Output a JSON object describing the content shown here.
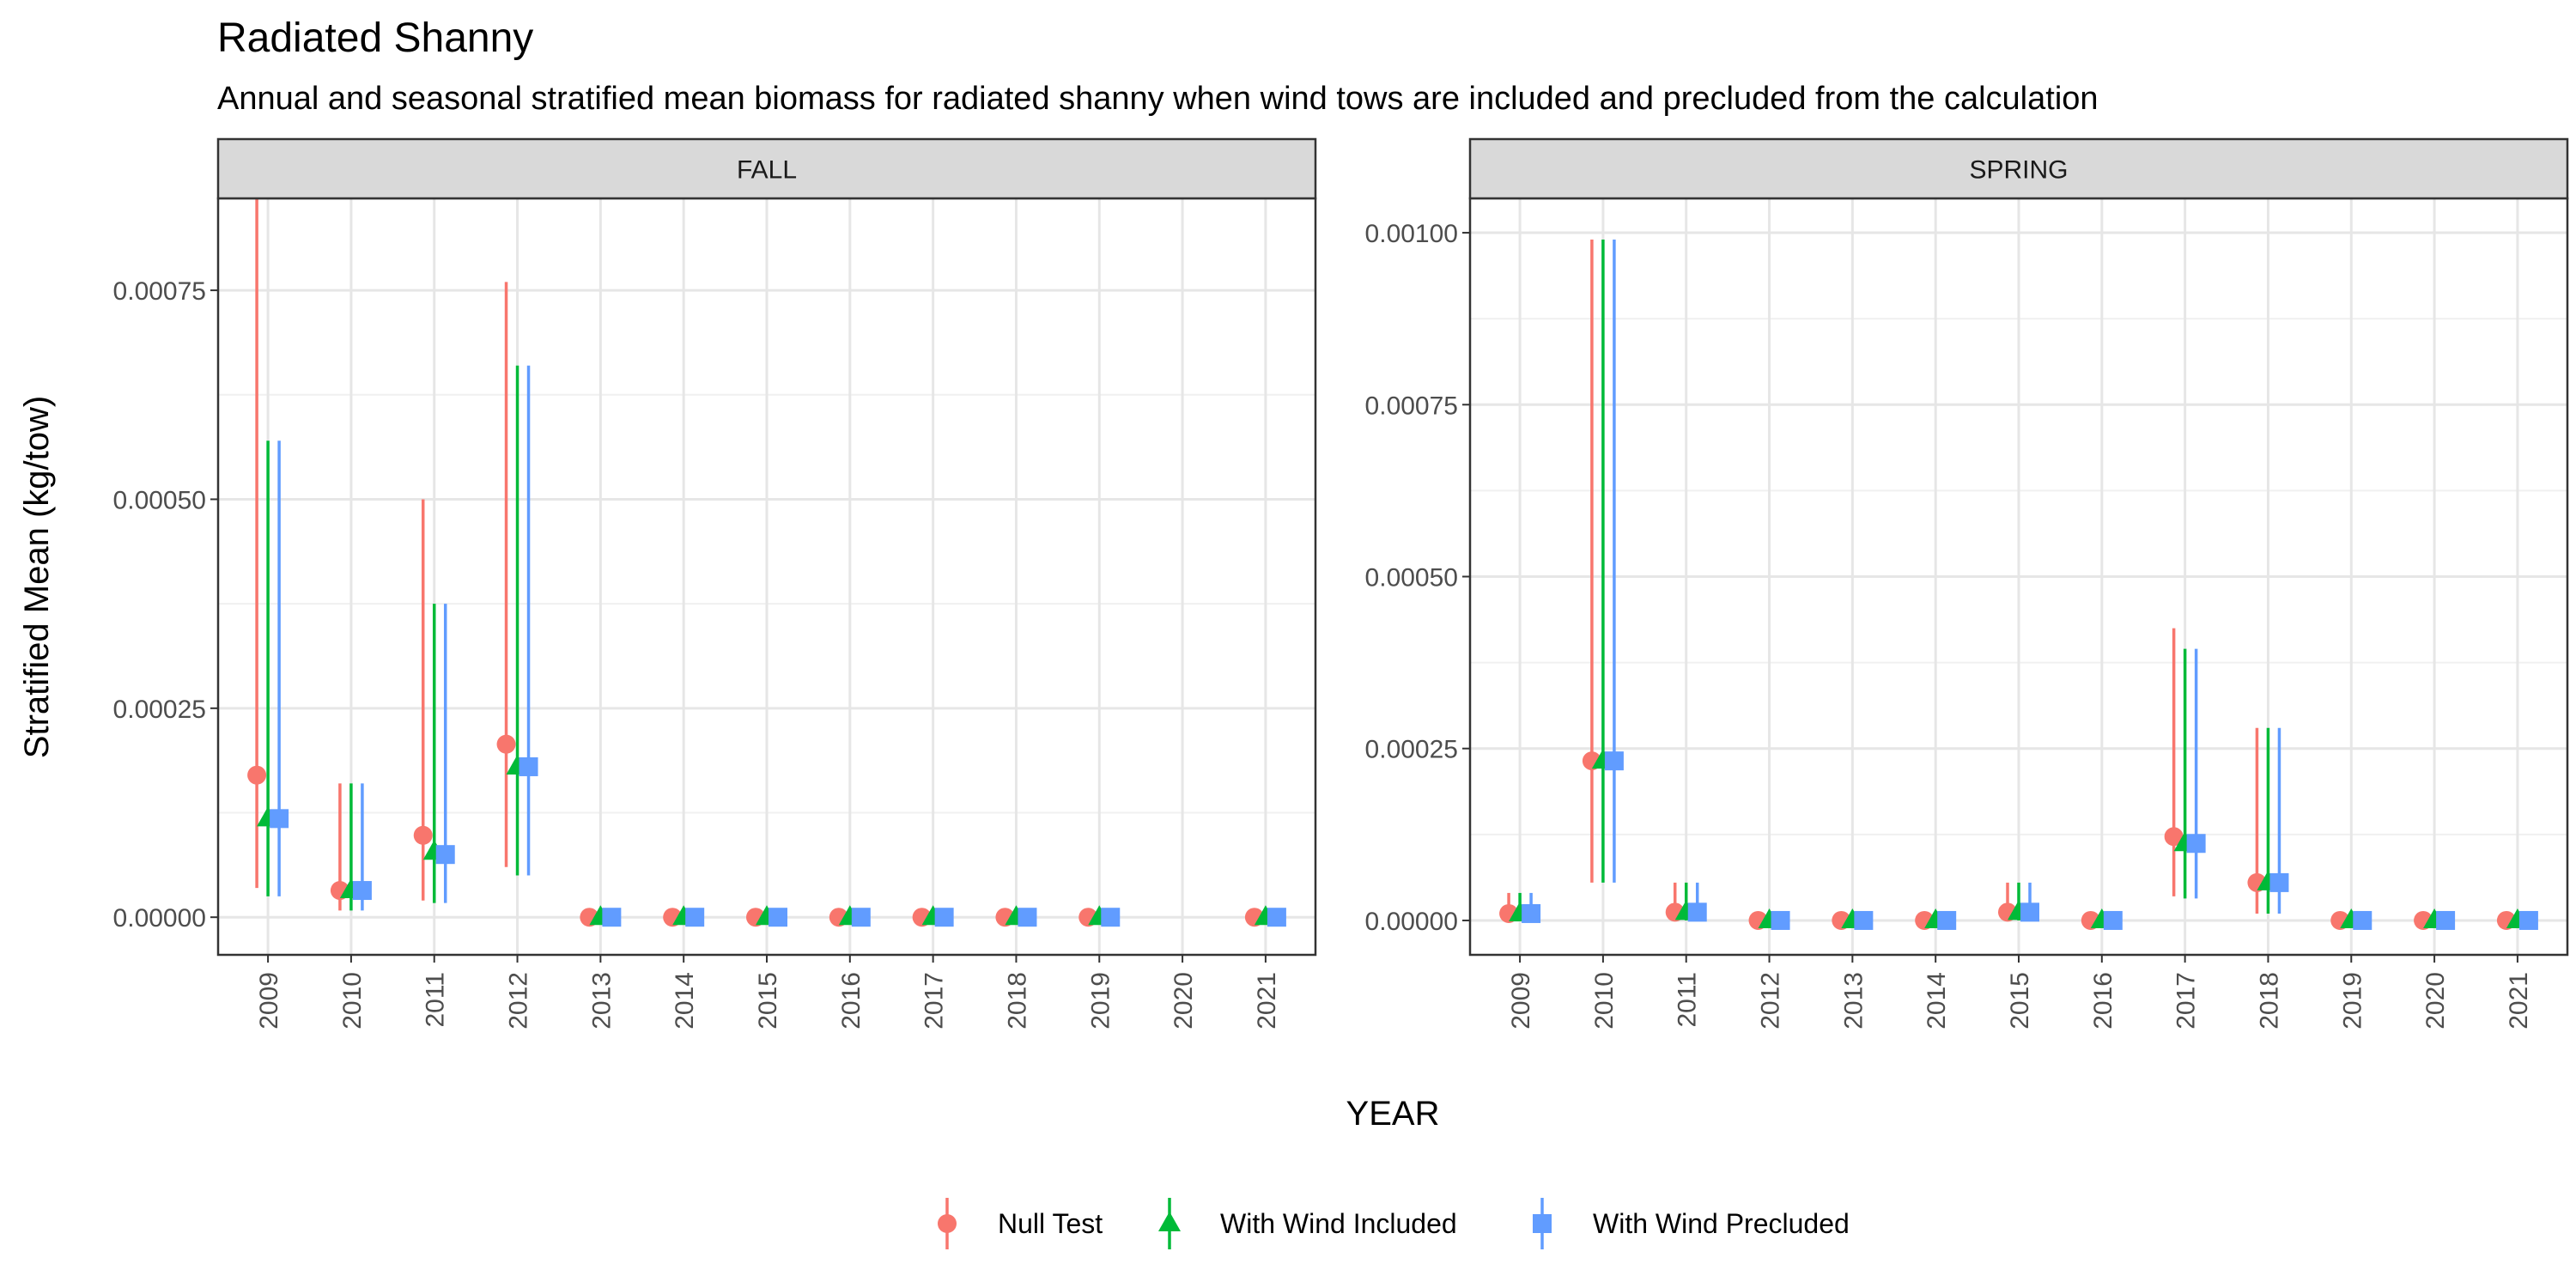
{
  "title": "Radiated Shanny",
  "subtitle": "Annual and seasonal stratified mean biomass for radiated shanny when wind tows are included and precluded from the calculation",
  "chart_data": {
    "type": "scatter",
    "xlabel": "YEAR",
    "ylabel": "Stratified Mean (kg/tow)",
    "facets": [
      {
        "name": "FALL",
        "categories": [
          "2009",
          "2010",
          "2011",
          "2012",
          "2013",
          "2014",
          "2015",
          "2016",
          "2017",
          "2018",
          "2019",
          "2020",
          "2021"
        ],
        "ylim": [
          -4.5e-05,
          0.00086
        ],
        "yticks": [
          0,
          0.00025,
          0.0005,
          0.00075
        ],
        "ytick_labels": [
          "0.00000",
          "0.00025",
          "0.00050",
          "0.00075"
        ],
        "series": [
          {
            "name": "Null Test",
            "values": [
              0.00017,
              3.2e-05,
              9.8e-05,
              0.000207,
              0,
              0,
              0,
              0,
              0,
              0,
              0,
              null,
              0
            ],
            "lower": [
              3.5e-05,
              8e-06,
              2e-05,
              6e-05,
              0,
              0,
              0,
              0,
              0,
              0,
              0,
              null,
              0
            ],
            "upper": [
              0.00086,
              0.00016,
              0.0005,
              0.00076,
              0,
              0,
              0,
              0,
              0,
              0,
              0,
              null,
              0
            ]
          },
          {
            "name": "With Wind Included",
            "values": [
              0.000118,
              3.2e-05,
              7.8e-05,
              0.00018,
              0,
              0,
              0,
              0,
              0,
              0,
              0,
              null,
              0
            ],
            "lower": [
              2.5e-05,
              8e-06,
              1.7e-05,
              5e-05,
              0,
              0,
              0,
              0,
              0,
              0,
              0,
              null,
              0
            ],
            "upper": [
              0.00057,
              0.00016,
              0.000375,
              0.00066,
              0,
              0,
              0,
              0,
              0,
              0,
              0,
              null,
              0
            ]
          },
          {
            "name": "With Wind Precluded",
            "values": [
              0.000118,
              3.2e-05,
              7.5e-05,
              0.00018,
              0,
              0,
              0,
              0,
              0,
              0,
              0,
              null,
              0
            ],
            "lower": [
              2.5e-05,
              8e-06,
              1.7e-05,
              5e-05,
              0,
              0,
              0,
              0,
              0,
              0,
              0,
              null,
              0
            ],
            "upper": [
              0.00057,
              0.00016,
              0.000375,
              0.00066,
              0,
              0,
              0,
              0,
              0,
              0,
              0,
              null,
              0
            ]
          }
        ]
      },
      {
        "name": "SPRING",
        "categories": [
          "2009",
          "2010",
          "2011",
          "2012",
          "2013",
          "2014",
          "2015",
          "2016",
          "2017",
          "2018",
          "2019",
          "2020",
          "2021"
        ],
        "ylim": [
          -5e-05,
          0.00105
        ],
        "yticks": [
          0,
          0.00025,
          0.0005,
          0.00075,
          0.001
        ],
        "ytick_labels": [
          "0.00000",
          "0.00025",
          "0.00050",
          "0.00075",
          "0.00100"
        ],
        "series": [
          {
            "name": "Null Test",
            "values": [
              1e-05,
              0.000232,
              1.2e-05,
              0,
              0,
              0,
              1.2e-05,
              0,
              0.000122,
              5.5e-05,
              0,
              0,
              0
            ],
            "lower": [
              0,
              5.5e-05,
              0,
              0,
              0,
              0,
              0,
              0,
              3.5e-05,
              1e-05,
              0,
              0,
              0
            ],
            "upper": [
              4e-05,
              0.00099,
              5.5e-05,
              0,
              0,
              0,
              5.5e-05,
              0,
              0.000425,
              0.00028,
              0,
              0,
              0
            ]
          },
          {
            "name": "With Wind Included",
            "values": [
              1e-05,
              0.000232,
              1.2e-05,
              0,
              0,
              0,
              1.2e-05,
              0,
              0.000112,
              5.5e-05,
              0,
              0,
              0
            ],
            "lower": [
              0,
              5.5e-05,
              0,
              0,
              0,
              0,
              0,
              0,
              3.2e-05,
              1e-05,
              0,
              0,
              0
            ],
            "upper": [
              4e-05,
              0.00099,
              5.5e-05,
              0,
              0,
              0,
              5.5e-05,
              0,
              0.000395,
              0.00028,
              0,
              0,
              0
            ]
          },
          {
            "name": "With Wind Precluded",
            "values": [
              1e-05,
              0.000232,
              1.2e-05,
              0,
              0,
              0,
              1.2e-05,
              0,
              0.000112,
              5.5e-05,
              0,
              0,
              0
            ],
            "lower": [
              0,
              5.5e-05,
              0,
              0,
              0,
              0,
              0,
              0,
              3.2e-05,
              1e-05,
              0,
              0,
              0
            ],
            "upper": [
              4e-05,
              0.00099,
              5.5e-05,
              0,
              0,
              0,
              5.5e-05,
              0,
              0.000395,
              0.00028,
              0,
              0,
              0
            ]
          }
        ]
      }
    ],
    "legend": {
      "position": "bottom",
      "entries": [
        {
          "name": "Null Test",
          "shape": "circle"
        },
        {
          "name": "With Wind Included",
          "shape": "triangle"
        },
        {
          "name": "With Wind Precluded",
          "shape": "square"
        }
      ]
    },
    "colors": {
      "Null Test": "#F8766D",
      "With Wind Included": "#00BA38",
      "With Wind Precluded": "#619CFF"
    },
    "grid": true
  }
}
